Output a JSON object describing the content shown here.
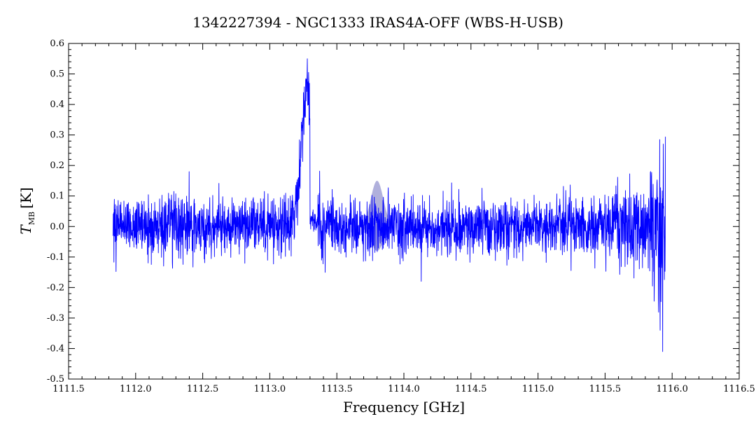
{
  "chart_data": {
    "type": "line",
    "title": "1342227394 - NGC1333 IRAS4A-OFF (WBS-H-USB)",
    "xlabel": "Frequency [GHz]",
    "ylabel": {
      "symbol": "T",
      "subscript": "MB",
      "unit": "[K]"
    },
    "xlim": [
      1111.5,
      1116.5
    ],
    "ylim": [
      -0.5,
      0.6
    ],
    "x_ticks": [
      1111.5,
      1112.0,
      1112.5,
      1113.0,
      1113.5,
      1114.0,
      1114.5,
      1115.0,
      1115.5,
      1116.0,
      1116.5
    ],
    "x_tick_labels": [
      "1111.5",
      "1112.0",
      "1112.5",
      "1113.0",
      "1113.5",
      "1114.0",
      "1114.5",
      "1115.0",
      "1115.5",
      "1116.0",
      "1116.5"
    ],
    "y_ticks": [
      -0.5,
      -0.4,
      -0.3,
      -0.2,
      -0.1,
      0.0,
      0.1,
      0.2,
      0.3,
      0.4,
      0.5,
      0.6
    ],
    "y_tick_labels": [
      "-0.5",
      "-0.4",
      "-0.3",
      "-0.2",
      "-0.1",
      "0.0",
      "0.1",
      "0.2",
      "0.3",
      "0.4",
      "0.5",
      "0.6"
    ],
    "grid": false,
    "series": [
      {
        "color": "#0000ff",
        "x_range": [
          1111.83,
          1115.95
        ],
        "baseline_noise_rms": 0.05,
        "edge_noise_rms": 0.08,
        "features": [
          {
            "kind": "emission",
            "x": 1113.28,
            "peak": 0.55
          }
        ],
        "gap": [
          1113.3,
          1113.35
        ],
        "end_dips": [
          {
            "x": 1115.93,
            "y": -0.41
          },
          {
            "x": 1115.91,
            "y": -0.34
          }
        ]
      }
    ],
    "model_overlay": {
      "center": 1113.8,
      "amplitude_range": [
        -0.08,
        0.15
      ],
      "half_width": 0.12,
      "color": "#7070c0"
    }
  }
}
